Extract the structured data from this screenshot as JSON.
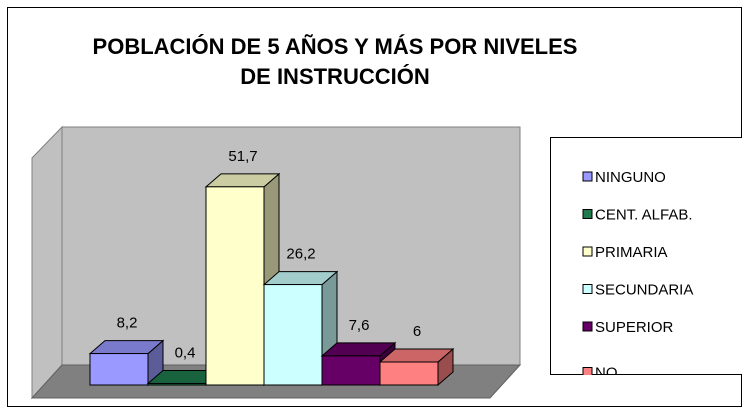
{
  "chart_data": {
    "type": "bar3d",
    "title": "POBLACIÓN DE 5 AÑOS Y MÁS POR NIVELES DE INSTRUCCIÓN",
    "categories": [
      "NINGUNO",
      "CENT. ALFAB.",
      "PRIMARIA",
      "SECUNDARIA",
      "SUPERIOR",
      "NO"
    ],
    "values": [
      8.2,
      0.4,
      51.7,
      26.2,
      7.6,
      6
    ],
    "value_labels": [
      "8,2",
      "0,4",
      "51,7",
      "26,2",
      "7,6",
      "6"
    ],
    "colors": [
      "#9999ff",
      "#1f7a4d",
      "#ffffcc",
      "#ccffff",
      "#660066",
      "#ff8080"
    ],
    "ylim": [
      0,
      60
    ],
    "legend": "right"
  }
}
